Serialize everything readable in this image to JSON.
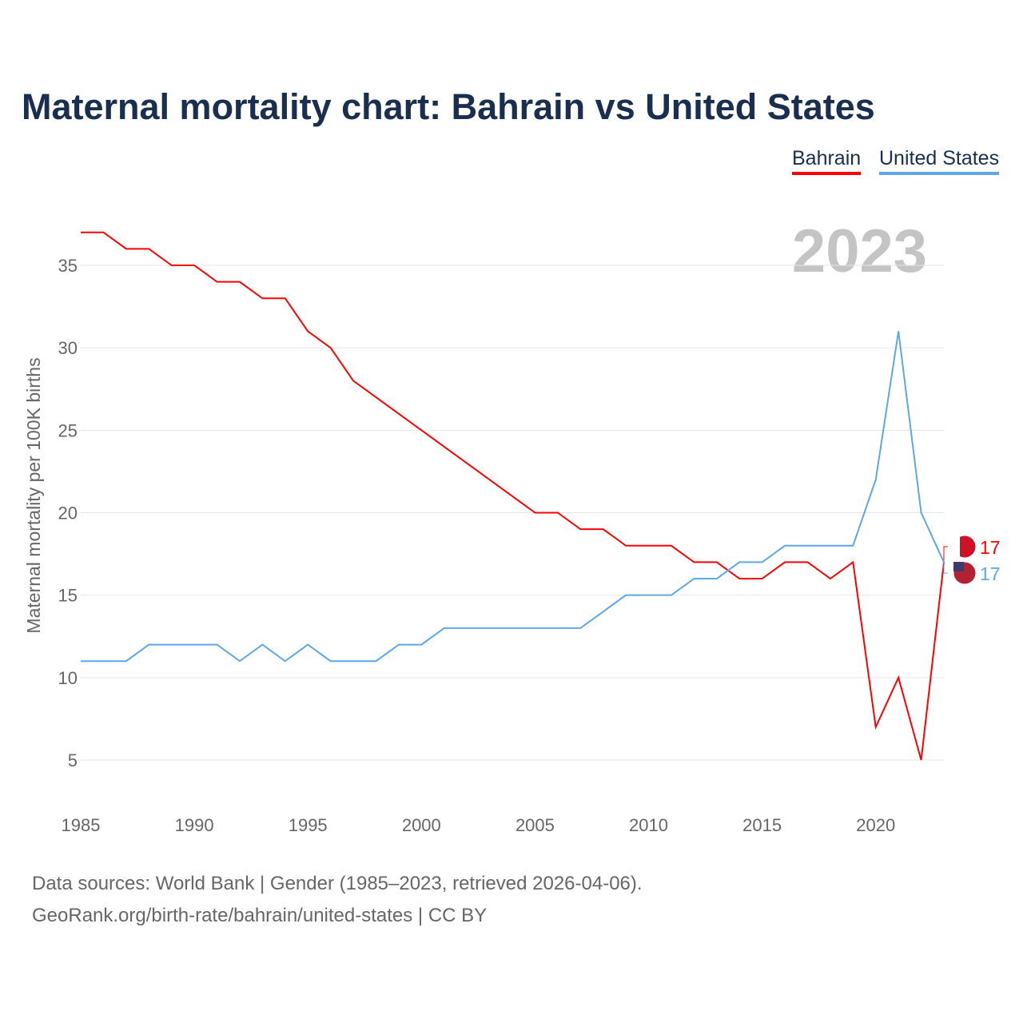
{
  "title": "Maternal mortality chart: Bahrain vs United States",
  "legend": {
    "bahrain": "Bahrain",
    "us": "United States"
  },
  "footer": {
    "line1": "Data sources: World Bank | Gender (1985–2023, retrieved 2026-04-06).",
    "line2": "GeoRank.org/birth-rate/bahrain/united-states | CC BY"
  },
  "chart_data": {
    "type": "line",
    "title": "Maternal mortality chart: Bahrain vs United States",
    "ylabel": "Maternal mortality per 100K births",
    "xlabel": "",
    "year_label": "2023",
    "xlim": [
      1985,
      2023
    ],
    "ylim": [
      3,
      38
    ],
    "xticks": [
      1985,
      1990,
      1995,
      2000,
      2005,
      2010,
      2015,
      2020
    ],
    "yticks": [
      5,
      10,
      15,
      20,
      25,
      30,
      35
    ],
    "grid": true,
    "legend_position": "top-right",
    "x": [
      1985,
      1986,
      1987,
      1988,
      1989,
      1990,
      1991,
      1992,
      1993,
      1994,
      1995,
      1996,
      1997,
      1998,
      1999,
      2000,
      2001,
      2002,
      2003,
      2004,
      2005,
      2006,
      2007,
      2008,
      2009,
      2010,
      2011,
      2012,
      2013,
      2014,
      2015,
      2016,
      2017,
      2018,
      2019,
      2020,
      2021,
      2022,
      2023
    ],
    "series": [
      {
        "name": "Bahrain",
        "color": "#ff0000",
        "end_label": "17",
        "values": [
          37,
          37,
          36,
          36,
          35,
          35,
          34,
          34,
          33,
          33,
          31,
          30,
          28,
          27,
          26,
          25,
          24,
          23,
          22,
          21,
          20,
          20,
          19,
          19,
          18,
          18,
          18,
          17,
          17,
          16,
          16,
          17,
          17,
          16,
          17,
          7,
          10,
          5,
          17
        ]
      },
      {
        "name": "United States",
        "color": "#5ea6ea",
        "end_label": "17",
        "values": [
          11,
          11,
          11,
          12,
          12,
          12,
          12,
          11,
          12,
          11,
          12,
          11,
          11,
          11,
          12,
          12,
          13,
          13,
          13,
          13,
          13,
          13,
          13,
          14,
          15,
          15,
          15,
          16,
          16,
          17,
          17,
          18,
          18,
          18,
          18,
          22,
          31,
          20,
          17
        ]
      }
    ]
  }
}
